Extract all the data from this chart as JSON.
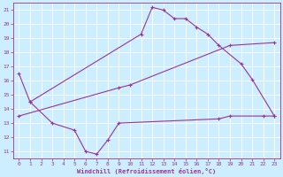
{
  "xlabel": "Windchill (Refroidissement éolien,°C)",
  "background_color": "#cceeff",
  "grid_color": "#ffffff",
  "line_color": "#993399",
  "series1_x": [
    0,
    1,
    11,
    12,
    13,
    14,
    15,
    16,
    17,
    18,
    20,
    21,
    23
  ],
  "series1_y": [
    16.5,
    14.5,
    19.3,
    21.2,
    21.0,
    20.4,
    20.4,
    19.8,
    19.3,
    18.5,
    17.2,
    16.1,
    13.5
  ],
  "series2_x": [
    0,
    9,
    10,
    19,
    23
  ],
  "series2_y": [
    13.5,
    15.5,
    15.7,
    18.5,
    18.7
  ],
  "series3_x": [
    1,
    3,
    5,
    6,
    7,
    8,
    9,
    18,
    19,
    22,
    23
  ],
  "series3_y": [
    14.5,
    13.0,
    12.5,
    11.0,
    10.8,
    11.8,
    13.0,
    13.3,
    13.5,
    13.5,
    13.5
  ],
  "xmin": 0,
  "xmax": 23,
  "ymin": 11,
  "ymax": 21,
  "xticks": [
    0,
    1,
    2,
    3,
    4,
    5,
    6,
    7,
    8,
    9,
    10,
    11,
    12,
    13,
    14,
    15,
    16,
    17,
    18,
    19,
    20,
    21,
    22,
    23
  ],
  "yticks": [
    11,
    12,
    13,
    14,
    15,
    16,
    17,
    18,
    19,
    20,
    21
  ]
}
